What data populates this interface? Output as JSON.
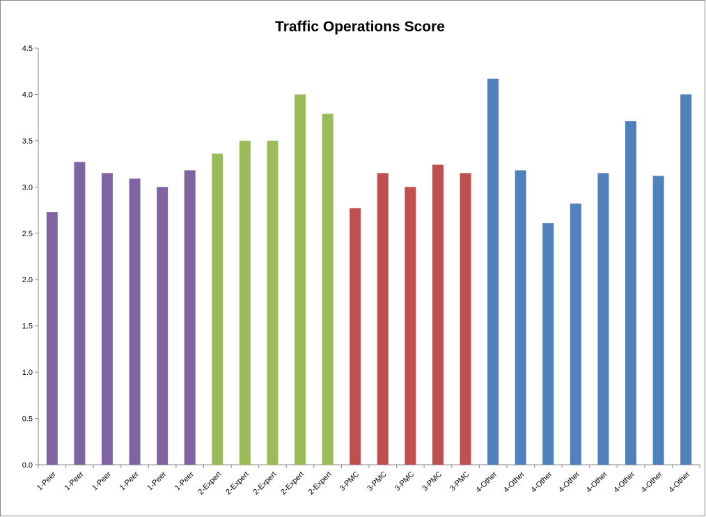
{
  "chart_data": {
    "type": "bar",
    "title": "Traffic Operations Score",
    "categories": [
      "1-Peer",
      "1-Peer",
      "1-Peer",
      "1-Peer",
      "1-Peer",
      "1-Peer",
      "2-Expert",
      "2-Expert",
      "2-Expert",
      "2-Expert",
      "2-Expert",
      "3-PMC",
      "3-PMC",
      "3-PMC",
      "3-PMC",
      "3-PMC",
      "4-Other",
      "4-Other",
      "4-Other",
      "4-Other",
      "4-Other",
      "4-Other",
      "4-Other",
      "4-Other"
    ],
    "values": [
      2.73,
      3.27,
      3.15,
      3.09,
      3.0,
      3.18,
      3.36,
      3.5,
      3.5,
      4.0,
      3.79,
      2.77,
      3.15,
      3.0,
      3.24,
      3.15,
      4.17,
      3.18,
      2.61,
      2.82,
      3.15,
      3.71,
      3.12,
      4.0
    ],
    "colors": [
      "#8064a2",
      "#8064a2",
      "#8064a2",
      "#8064a2",
      "#8064a2",
      "#8064a2",
      "#9bbb59",
      "#9bbb59",
      "#9bbb59",
      "#9bbb59",
      "#9bbb59",
      "#c0504d",
      "#c0504d",
      "#c0504d",
      "#c0504d",
      "#c0504d",
      "#4f81bd",
      "#4f81bd",
      "#4f81bd",
      "#4f81bd",
      "#4f81bd",
      "#4f81bd",
      "#4f81bd",
      "#4f81bd"
    ],
    "ylim": [
      0,
      4.5
    ],
    "yticks": [
      {
        "value": 0,
        "label": "0.0"
      },
      0.5,
      {
        "value": 1,
        "label": "1.0"
      },
      1.5,
      {
        "value": 2,
        "label": "2.0"
      },
      2.5,
      {
        "value": 3,
        "label": "3.0"
      },
      3.5,
      {
        "value": 4,
        "label": "4.0"
      },
      4.5
    ],
    "grid": false
  }
}
